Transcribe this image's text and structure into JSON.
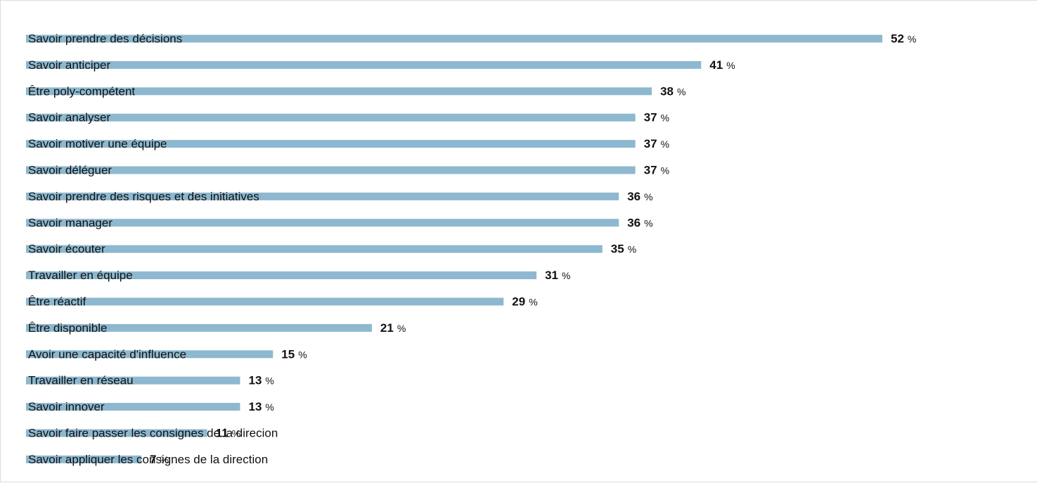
{
  "chart_data": {
    "type": "bar",
    "orientation": "horizontal",
    "bar_color": "#8db8cf",
    "unit": "%",
    "categories": [
      "Savoir prendre des décisions",
      "Savoir anticiper",
      "Être poly-compétent",
      "Savoir analyser",
      "Savoir motiver une équipe",
      "Savoir déléguer",
      "Savoir prendre des risques et des initiatives",
      "Savoir manager",
      "Savoir écouter",
      "Travailler en équipe",
      "Être réactif",
      "Être disponible",
      "Avoir une capacité d'influence",
      "Travailler en réseau",
      "Savoir innover",
      "Savoir faire passer les consignes de la direcion",
      "Savoir appliquer les consignes de la direction"
    ],
    "values": [
      52,
      41,
      38,
      37,
      37,
      37,
      36,
      36,
      35,
      31,
      29,
      21,
      15,
      13,
      13,
      11,
      7
    ],
    "value_labels": [
      "52",
      "41",
      "38",
      "37",
      "37",
      "37",
      "36",
      "36",
      "35",
      "31",
      "29",
      "21",
      "15",
      "13",
      "13",
      "11",
      "7"
    ],
    "grid": false,
    "legend": "none"
  }
}
